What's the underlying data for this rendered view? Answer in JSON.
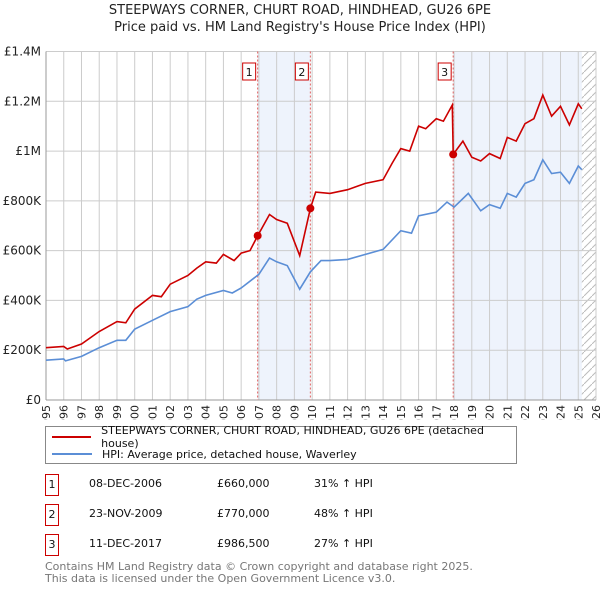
{
  "title": "STEEPWAYS CORNER, CHURT ROAD, HINDHEAD, GU26 6PE",
  "subtitle": "Price paid vs. HM Land Registry's House Price Index (HPI)",
  "chart_data": {
    "type": "line",
    "title": "STEEPWAYS CORNER, CHURT ROAD, HINDHEAD, GU26 6PE",
    "xlim": [
      1995,
      2026
    ],
    "ylim": [
      0,
      1400000
    ],
    "yticks": [
      0,
      200000,
      400000,
      600000,
      800000,
      1000000,
      1200000,
      1400000
    ],
    "ytick_labels": [
      "£0",
      "£200K",
      "£400K",
      "£600K",
      "£800K",
      "£1M",
      "£1.2M",
      "£1.4M"
    ],
    "xtick_labels": [
      "1995",
      "1996",
      "1997",
      "1998",
      "1999",
      "2000",
      "2001",
      "2002",
      "2003",
      "2004",
      "2005",
      "2006",
      "2007",
      "2008",
      "2009",
      "2010",
      "2011",
      "2012",
      "2013",
      "2014",
      "2015",
      "2016",
      "2017",
      "2018",
      "2019",
      "2020",
      "2021",
      "2022",
      "2023",
      "2024",
      "2025",
      "2026"
    ],
    "grid": true,
    "forecast_hatch_from": 2025.2,
    "series": [
      {
        "name": "STEEPWAYS CORNER, CHURT ROAD, HINDHEAD, GU26 6PE (detached house)",
        "color": "#cc0000",
        "x": [
          1995,
          1996,
          1996.2,
          1997,
          1998,
          1999,
          1999.5,
          2000,
          2001,
          2001.5,
          2002,
          2003,
          2003.5,
          2004,
          2004.6,
          2005,
          2005.6,
          2006,
          2006.5,
          2006.93,
          2007.6,
          2008,
          2008.6,
          2009.3,
          2009.9,
          2010.2,
          2011,
          2012,
          2012.6,
          2013,
          2014,
          2014.5,
          2015,
          2015.5,
          2016,
          2016.4,
          2017,
          2017.4,
          2017.9,
          2017.95,
          2018.5,
          2019,
          2019.5,
          2020,
          2020.6,
          2021,
          2021.5,
          2022,
          2022.5,
          2023,
          2023.5,
          2024,
          2024.5,
          2025,
          2025.2
        ],
        "y": [
          210000,
          215000,
          205000,
          225000,
          275000,
          315000,
          310000,
          365000,
          420000,
          415000,
          465000,
          500000,
          530000,
          555000,
          550000,
          585000,
          560000,
          590000,
          600000,
          660000,
          745000,
          725000,
          710000,
          580000,
          770000,
          835000,
          830000,
          845000,
          860000,
          870000,
          885000,
          950000,
          1010000,
          1000000,
          1100000,
          1090000,
          1130000,
          1120000,
          1185000,
          986500,
          1040000,
          975000,
          960000,
          990000,
          970000,
          1055000,
          1040000,
          1110000,
          1130000,
          1225000,
          1140000,
          1180000,
          1105000,
          1190000,
          1170000
        ]
      },
      {
        "name": "HPI: Average price, detached house, Waverley",
        "color": "#5b8ed6",
        "x": [
          1995,
          1996,
          1996.1,
          1997,
          1998,
          1999,
          1999.5,
          2000,
          2001,
          2002,
          2003,
          2003.5,
          2004,
          2005,
          2005.5,
          2006,
          2007,
          2007.6,
          2008,
          2008.6,
          2009.3,
          2009.9,
          2010.5,
          2011,
          2012,
          2013,
          2014,
          2015,
          2015.6,
          2016,
          2017,
          2017.6,
          2018,
          2018.8,
          2019.2,
          2019.5,
          2020,
          2020.6,
          2021,
          2021.5,
          2022,
          2022.5,
          2023,
          2023.5,
          2024,
          2024.5,
          2025,
          2025.2
        ],
        "y": [
          160000,
          165000,
          157000,
          175000,
          210000,
          240000,
          240000,
          285000,
          320000,
          355000,
          375000,
          405000,
          420000,
          440000,
          430000,
          450000,
          505000,
          570000,
          555000,
          540000,
          445000,
          515000,
          560000,
          560000,
          565000,
          585000,
          605000,
          680000,
          670000,
          740000,
          755000,
          795000,
          775000,
          830000,
          790000,
          760000,
          785000,
          770000,
          830000,
          815000,
          870000,
          885000,
          965000,
          910000,
          915000,
          870000,
          940000,
          925000
        ]
      }
    ],
    "sales": [
      {
        "label": "1",
        "x": 2006.93,
        "y": 660000,
        "date": "08-DEC-2006",
        "price": "£660,000",
        "hpi": "31% ↑ HPI"
      },
      {
        "label": "2",
        "x": 2009.9,
        "y": 770000,
        "date": "23-NOV-2009",
        "price": "£770,000",
        "hpi": "48% ↑ HPI"
      },
      {
        "label": "3",
        "x": 2017.95,
        "y": 986500,
        "date": "11-DEC-2017",
        "price": "£986,500",
        "hpi": "27% ↑ HPI"
      }
    ],
    "legend_placement": "bottom"
  },
  "legend": {
    "property": "STEEPWAYS CORNER, CHURT ROAD, HINDHEAD, GU26 6PE (detached house)",
    "hpi": "HPI: Average price, detached house, Waverley"
  },
  "footer": {
    "line1": "Contains HM Land Registry data © Crown copyright and database right 2025.",
    "line2": "This data is licensed under the Open Government Licence v3.0."
  }
}
